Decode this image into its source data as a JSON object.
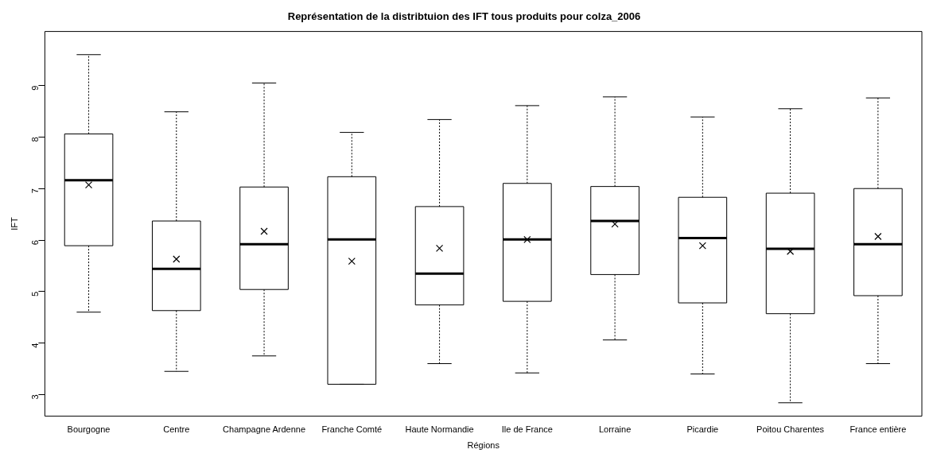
{
  "chart_data": {
    "type": "box",
    "title": "Représentation de la distribtuion des IFT tous produits pour colza_2006",
    "xlabel": "Régions",
    "ylabel": "IFT",
    "categories": [
      "Bourgogne",
      "Centre",
      "Champagne Ardenne",
      "Franche Comté",
      "Haute Normandie",
      "Ile de France",
      "Lorraine",
      "Picardie",
      "Poitou Charentes",
      "France entière"
    ],
    "boxes": [
      {
        "low": 4.6,
        "q1": 5.89,
        "median": 7.16,
        "q3": 8.06,
        "high": 9.6,
        "mean": 7.07
      },
      {
        "low": 3.45,
        "q1": 4.63,
        "median": 5.44,
        "q3": 6.37,
        "high": 8.49,
        "mean": 5.63
      },
      {
        "low": 3.75,
        "q1": 5.04,
        "median": 5.92,
        "q3": 7.03,
        "high": 9.05,
        "mean": 6.17
      },
      {
        "low": 3.2,
        "q1": 3.2,
        "median": 6.01,
        "q3": 7.23,
        "high": 8.09,
        "mean": 5.59
      },
      {
        "low": 3.6,
        "q1": 4.74,
        "median": 5.35,
        "q3": 6.65,
        "high": 8.34,
        "mean": 5.84
      },
      {
        "low": 3.42,
        "q1": 4.81,
        "median": 6.01,
        "q3": 7.1,
        "high": 8.61,
        "mean": 6.01
      },
      {
        "low": 4.06,
        "q1": 5.33,
        "median": 6.37,
        "q3": 7.04,
        "high": 8.78,
        "mean": 6.31
      },
      {
        "low": 3.4,
        "q1": 4.78,
        "median": 6.04,
        "q3": 6.83,
        "high": 8.39,
        "mean": 5.89
      },
      {
        "low": 2.84,
        "q1": 4.57,
        "median": 5.83,
        "q3": 6.91,
        "high": 8.55,
        "mean": 5.78
      },
      {
        "low": 3.6,
        "q1": 4.92,
        "median": 5.92,
        "q3": 7.0,
        "high": 8.76,
        "mean": 6.07
      }
    ],
    "ylim": [
      2.58,
      10.05
    ],
    "yticks": [
      3,
      4,
      5,
      6,
      7,
      8,
      9
    ],
    "grid": false,
    "legend": false,
    "marker": "cross"
  }
}
